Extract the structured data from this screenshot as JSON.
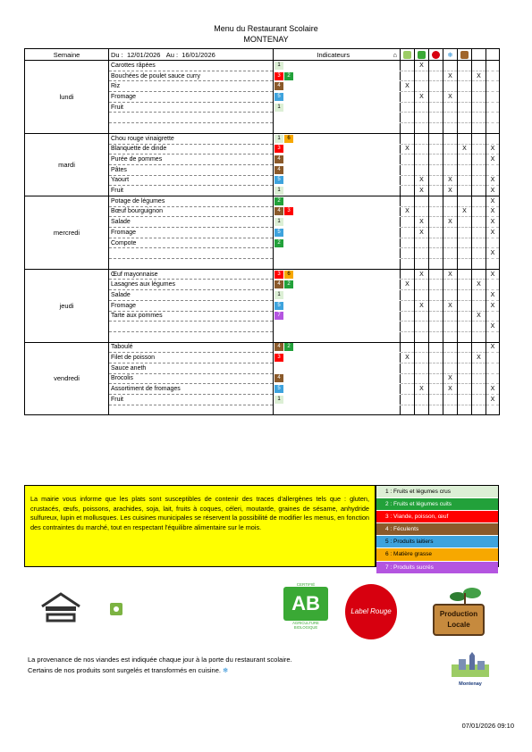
{
  "header": {
    "title": "Menu du Restaurant Scolaire",
    "town": "MONTENAY"
  },
  "table": {
    "col_semaine": "Semaine",
    "col_du": "Du :",
    "date_from": "12/01/2026",
    "col_au": "Au :",
    "date_to": "16/01/2026",
    "col_indicateurs": "Indicateurs"
  },
  "days": [
    {
      "name": "lundi",
      "rows": [
        {
          "dish": "Carottes râpées",
          "ind": [
            1
          ],
          "marks": [
            "",
            "X",
            "",
            "",
            "",
            "",
            ""
          ]
        },
        {
          "dish": "Bouchées de poulet sauce curry",
          "ind": [
            3,
            2
          ],
          "marks": [
            "",
            "",
            "",
            "X",
            "",
            "X",
            ""
          ]
        },
        {
          "dish": "Riz",
          "ind": [
            4
          ],
          "marks": [
            "X",
            "",
            "",
            "",
            "",
            "",
            ""
          ]
        },
        {
          "dish": "Fromage",
          "ind": [
            5
          ],
          "marks": [
            "",
            "X",
            "",
            "X",
            "",
            "",
            ""
          ]
        },
        {
          "dish": "Fruit",
          "ind": [
            1
          ],
          "marks": [
            "",
            "",
            "",
            "",
            "",
            "",
            ""
          ]
        },
        {
          "dish": "",
          "ind": [],
          "marks": [
            "",
            "",
            "",
            "",
            "",
            "",
            ""
          ]
        },
        {
          "dish": "",
          "ind": [],
          "marks": [
            "",
            "",
            "",
            "",
            "",
            "",
            ""
          ]
        }
      ]
    },
    {
      "name": "mardi",
      "rows": [
        {
          "dish": "Chou rouge vinaigrette",
          "ind": [
            1,
            6
          ],
          "marks": [
            "",
            "",
            "",
            "",
            "",
            "",
            ""
          ]
        },
        {
          "dish": "Blanquette de dinde",
          "ind": [
            3
          ],
          "marks": [
            "X",
            "",
            "",
            "",
            "X",
            "",
            "X"
          ]
        },
        {
          "dish": "Purée de pommes",
          "ind": [
            4
          ],
          "marks": [
            "",
            "",
            "",
            "",
            "",
            "",
            "X"
          ]
        },
        {
          "dish": "Pâtes",
          "ind": [
            4
          ],
          "marks": [
            "",
            "",
            "",
            "",
            "",
            "",
            ""
          ]
        },
        {
          "dish": "Yaourt",
          "ind": [
            5
          ],
          "marks": [
            "",
            "X",
            "",
            "X",
            "",
            "",
            "X"
          ]
        },
        {
          "dish": "Fruit",
          "ind": [
            1
          ],
          "marks": [
            "",
            "X",
            "",
            "X",
            "",
            "",
            "X"
          ]
        }
      ]
    },
    {
      "name": "mercredi",
      "rows": [
        {
          "dish": "Potage de légumes",
          "ind": [
            2
          ],
          "marks": [
            "",
            "",
            "",
            "",
            "",
            "",
            "X"
          ]
        },
        {
          "dish": "Bœuf bourguignon",
          "ind": [
            4,
            3
          ],
          "marks": [
            "X",
            "",
            "",
            "",
            "X",
            "",
            "X"
          ]
        },
        {
          "dish": "Salade",
          "ind": [
            1
          ],
          "marks": [
            "",
            "X",
            "",
            "X",
            "",
            "",
            "X"
          ]
        },
        {
          "dish": "Fromage",
          "ind": [
            5
          ],
          "marks": [
            "",
            "X",
            "",
            "",
            "",
            "",
            "X"
          ]
        },
        {
          "dish": "Compote",
          "ind": [
            2
          ],
          "marks": [
            "",
            "",
            "",
            "",
            "",
            "",
            ""
          ]
        },
        {
          "dish": "",
          "ind": [],
          "marks": [
            "",
            "",
            "",
            "",
            "",
            "",
            "X"
          ]
        },
        {
          "dish": "",
          "ind": [],
          "marks": [
            "",
            "",
            "",
            "",
            "",
            "",
            ""
          ]
        }
      ]
    },
    {
      "name": "jeudi",
      "rows": [
        {
          "dish": "Œuf mayonnaise",
          "ind": [
            3,
            6
          ],
          "marks": [
            "",
            "X",
            "",
            "X",
            "",
            "",
            "X"
          ]
        },
        {
          "dish": "Lasagnes aux légumes",
          "ind": [
            4,
            2
          ],
          "marks": [
            "X",
            "",
            "",
            "",
            "",
            "X",
            ""
          ]
        },
        {
          "dish": "Salade",
          "ind": [
            1
          ],
          "marks": [
            "",
            "",
            "",
            "",
            "",
            "",
            "X"
          ]
        },
        {
          "dish": "Fromage",
          "ind": [
            5
          ],
          "marks": [
            "",
            "X",
            "",
            "X",
            "",
            "",
            "X"
          ]
        },
        {
          "dish": "Tarte aux pommes",
          "ind": [
            7
          ],
          "marks": [
            "",
            "",
            "",
            "",
            "",
            "X",
            ""
          ]
        },
        {
          "dish": "",
          "ind": [],
          "marks": [
            "",
            "",
            "",
            "",
            "",
            "",
            "X"
          ]
        },
        {
          "dish": "",
          "ind": [],
          "marks": [
            "",
            "",
            "",
            "",
            "",
            "",
            ""
          ]
        }
      ]
    },
    {
      "name": "vendredi",
      "rows": [
        {
          "dish": "Taboulé",
          "ind": [
            4,
            2
          ],
          "marks": [
            "",
            "",
            "",
            "",
            "",
            "",
            "X"
          ]
        },
        {
          "dish": "Filet de poisson",
          "ind": [
            3
          ],
          "marks": [
            "X",
            "",
            "",
            "",
            "",
            "X",
            ""
          ]
        },
        {
          "dish": "Sauce aneth",
          "ind": [],
          "marks": [
            "",
            "",
            "",
            "",
            "",
            "",
            ""
          ]
        },
        {
          "dish": "Brocolis",
          "ind": [
            4
          ],
          "marks": [
            "",
            "",
            "",
            "X",
            "",
            "",
            ""
          ]
        },
        {
          "dish": "Assortiment de fromages",
          "ind": [
            5
          ],
          "marks": [
            "",
            "X",
            "",
            "X",
            "",
            "",
            "X"
          ]
        },
        {
          "dish": "Fruit",
          "ind": [
            1
          ],
          "marks": [
            "",
            "",
            "",
            "",
            "",
            "",
            "X"
          ]
        },
        {
          "dish": "",
          "ind": [],
          "marks": [
            "",
            "",
            "",
            "",
            "",
            "",
            ""
          ]
        }
      ]
    }
  ],
  "info_text": "La mairie vous informe que les plats sont susceptibles de contenir des traces d'allergènes tels que : gluten, crustacés, œufs, poissons, arachides, soja, lait, fruits à coques, céleri, moutarde, graines de sésame, anhydride sulfureux, lupin et mollusques. Les cuisines municipales se réservent la possibilité de modifier les menus, en fonction des contraintes du marché, tout en respectant l'équilibre alimentaire sur le mois.",
  "legend": [
    {
      "label": "1 : Fruits et légumes crus",
      "color": "#dcefd5"
    },
    {
      "label": "2 : Fruits et légumes cuits",
      "color": "#22a13a"
    },
    {
      "label": "3 : Viande, poisson, œuf",
      "color": "#ff0000"
    },
    {
      "label": "4 : Féculents",
      "color": "#8b5a2b"
    },
    {
      "label": "5 : Produits laitiers",
      "color": "#3ea3dd"
    },
    {
      "label": "6 : Matière grasse",
      "color": "#f7a800"
    },
    {
      "label": "7 : Produits sucrés",
      "color": "#b455e0"
    }
  ],
  "logos": {
    "ab_top": "CERTIFIÉ",
    "ab_letters": "AB",
    "ab_bottom": "AGRICULTURE BIOLOGIQUE",
    "label_rouge": "Label Rouge",
    "prod_locale": "Production Locale",
    "town_logo": "Montenay"
  },
  "provenance": [
    "La provenance de nos viandes est indiquée chaque jour à la porte du restaurant scolaire.",
    "Certains de nos produits sont surgelés et transformés en cuisine."
  ],
  "timestamp": "07/01/2026 09:10"
}
